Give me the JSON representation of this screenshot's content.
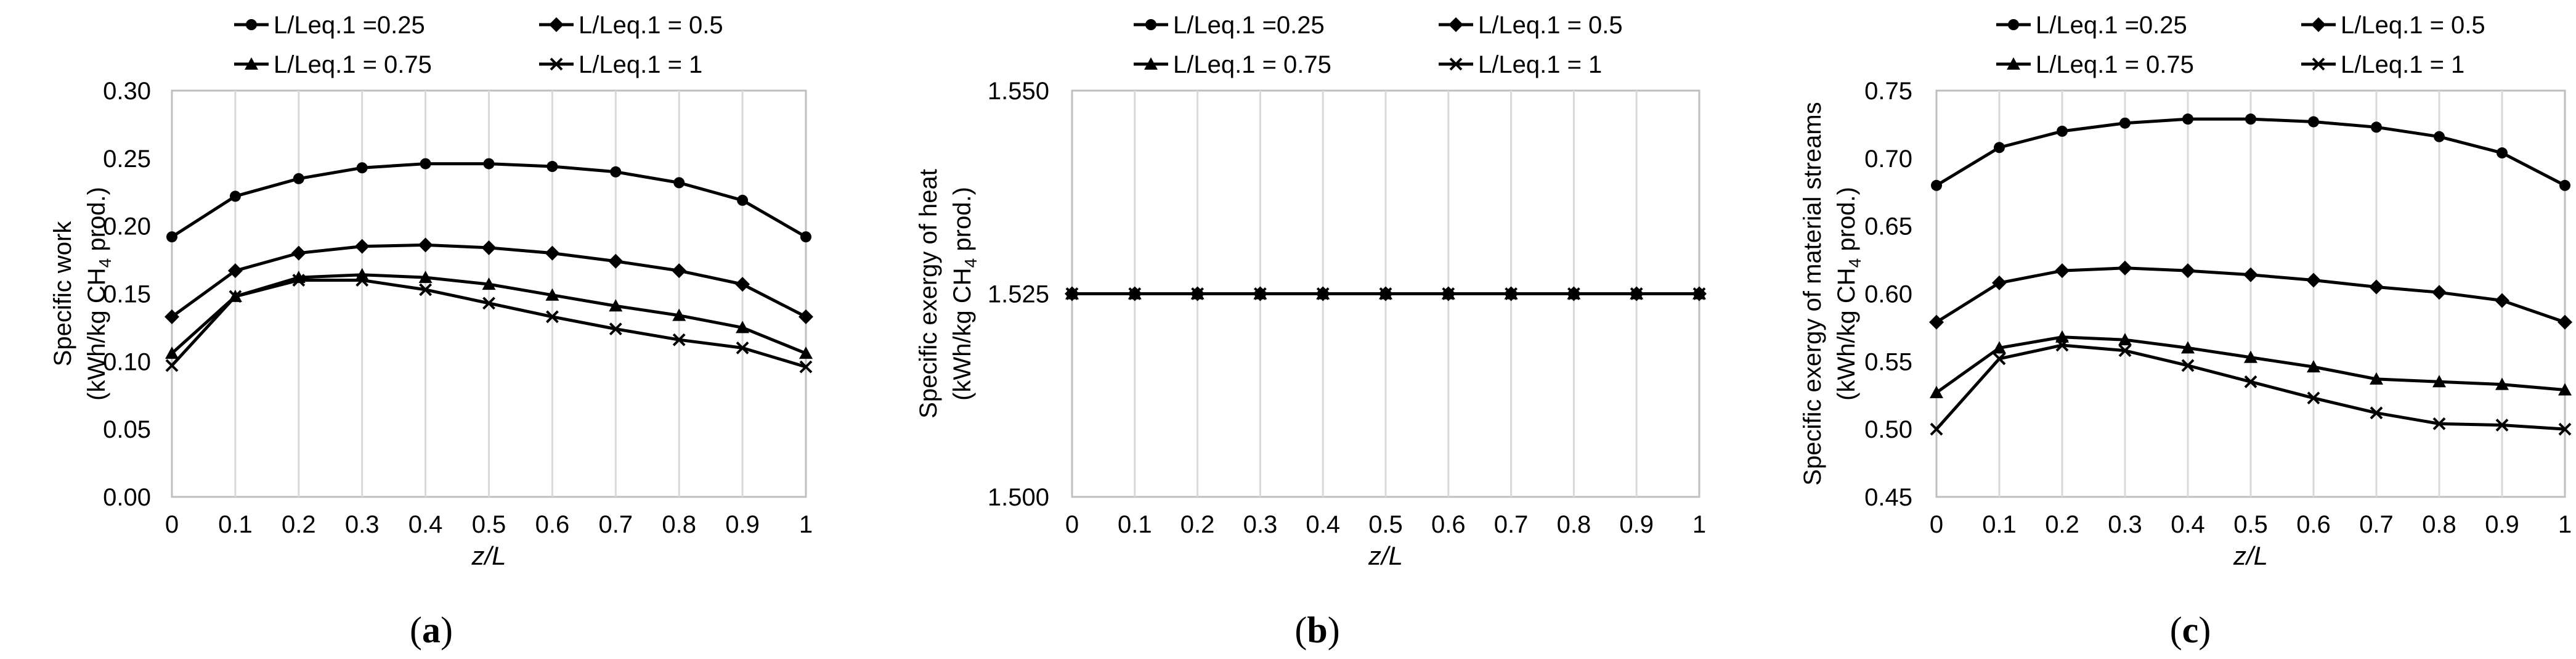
{
  "panels": [
    {
      "caption_letter": "a",
      "ylabel_line1": "Specific work",
      "ylabel_line2_pre": "(kWh/kg CH",
      "ylabel_line2_sub": "4",
      "ylabel_line2_post": " prod.)"
    },
    {
      "caption_letter": "b",
      "ylabel_line1": "Specific exergy of heat",
      "ylabel_line2_pre": "(kWh/kg CH",
      "ylabel_line2_sub": "4",
      "ylabel_line2_post": " prod.)"
    },
    {
      "caption_letter": "c",
      "ylabel_line1": "Specific exergy of material streams",
      "ylabel_line2_pre": "(kWh/kg CH",
      "ylabel_line2_sub": "4",
      "ylabel_line2_post": " prod.)"
    }
  ],
  "chart_data": [
    {
      "type": "line",
      "xlabel": "z/L",
      "ylabel": "Specific work (kWh/kg CH4 prod.)",
      "x": [
        0,
        0.1,
        0.2,
        0.3,
        0.4,
        0.5,
        0.6,
        0.7,
        0.8,
        0.9,
        1
      ],
      "x_tick_labels": [
        "0",
        "0.1",
        "0.2",
        "0.3",
        "0.4",
        "0.5",
        "0.6",
        "0.7",
        "0.8",
        "0.9",
        "1"
      ],
      "ylim": [
        0,
        0.3
      ],
      "y_ticks": [
        0,
        0.05,
        0.1,
        0.15,
        0.2,
        0.25,
        0.3
      ],
      "y_tick_labels": [
        "0.00",
        "0.05",
        "0.10",
        "0.15",
        "0.20",
        "0.25",
        "0.30"
      ],
      "grid": "vertical",
      "legend_position": "top",
      "series": [
        {
          "name": "L/Leq.1 =0.25",
          "marker": "circle",
          "values": [
            0.192,
            0.222,
            0.235,
            0.243,
            0.246,
            0.246,
            0.244,
            0.24,
            0.232,
            0.219,
            0.192
          ]
        },
        {
          "name": "L/Leq.1 = 0.5",
          "marker": "diamond",
          "values": [
            0.133,
            0.167,
            0.18,
            0.185,
            0.186,
            0.184,
            0.18,
            0.174,
            0.167,
            0.157,
            0.133
          ]
        },
        {
          "name": "L/Leq.1 = 0.75",
          "marker": "triangle",
          "values": [
            0.106,
            0.148,
            0.162,
            0.164,
            0.162,
            0.157,
            0.149,
            0.141,
            0.134,
            0.125,
            0.106
          ]
        },
        {
          "name": "L/Leq.1 = 1",
          "marker": "x",
          "values": [
            0.097,
            0.148,
            0.16,
            0.16,
            0.153,
            0.143,
            0.133,
            0.124,
            0.116,
            0.11,
            0.096
          ]
        }
      ]
    },
    {
      "type": "line",
      "xlabel": "z/L",
      "ylabel": "Specific exergy of heat (kWh/kg CH4 prod.)",
      "x": [
        0,
        0.1,
        0.2,
        0.3,
        0.4,
        0.5,
        0.6,
        0.7,
        0.8,
        0.9,
        1
      ],
      "x_tick_labels": [
        "0",
        "0.1",
        "0.2",
        "0.3",
        "0.4",
        "0.5",
        "0.6",
        "0.7",
        "0.8",
        "0.9",
        "1"
      ],
      "ylim": [
        1.5,
        1.55
      ],
      "y_ticks": [
        1.5,
        1.525,
        1.55
      ],
      "y_tick_labels": [
        "1.500",
        "1.525",
        "1.550"
      ],
      "grid": "vertical",
      "legend_position": "top",
      "series": [
        {
          "name": "L/Leq.1 =0.25",
          "marker": "circle",
          "values": [
            1.525,
            1.525,
            1.525,
            1.525,
            1.525,
            1.525,
            1.525,
            1.525,
            1.525,
            1.525,
            1.525
          ]
        },
        {
          "name": "L/Leq.1 = 0.5",
          "marker": "diamond",
          "values": [
            1.525,
            1.525,
            1.525,
            1.525,
            1.525,
            1.525,
            1.525,
            1.525,
            1.525,
            1.525,
            1.525
          ]
        },
        {
          "name": "L/Leq.1 = 0.75",
          "marker": "triangle",
          "values": [
            1.525,
            1.525,
            1.525,
            1.525,
            1.525,
            1.525,
            1.525,
            1.525,
            1.525,
            1.525,
            1.525
          ]
        },
        {
          "name": "L/Leq.1 = 1",
          "marker": "x",
          "values": [
            1.525,
            1.525,
            1.525,
            1.525,
            1.525,
            1.525,
            1.525,
            1.525,
            1.525,
            1.525,
            1.525
          ]
        }
      ]
    },
    {
      "type": "line",
      "xlabel": "z/L",
      "ylabel": "Specific exergy of material streams (kWh/kg CH4 prod.)",
      "x": [
        0,
        0.1,
        0.2,
        0.3,
        0.4,
        0.5,
        0.6,
        0.7,
        0.8,
        0.9,
        1
      ],
      "x_tick_labels": [
        "0",
        "0.1",
        "0.2",
        "0.3",
        "0.4",
        "0.5",
        "0.6",
        "0.7",
        "0.8",
        "0.9",
        "1"
      ],
      "ylim": [
        0.45,
        0.75
      ],
      "y_ticks": [
        0.45,
        0.5,
        0.55,
        0.6,
        0.65,
        0.7,
        0.75
      ],
      "y_tick_labels": [
        "0.45",
        "0.50",
        "0.55",
        "0.60",
        "0.65",
        "0.70",
        "0.75"
      ],
      "grid": "vertical",
      "legend_position": "top",
      "series": [
        {
          "name": "L/Leq.1 =0.25",
          "marker": "circle",
          "values": [
            0.68,
            0.708,
            0.72,
            0.726,
            0.729,
            0.729,
            0.727,
            0.723,
            0.716,
            0.704,
            0.68
          ]
        },
        {
          "name": "L/Leq.1 = 0.5",
          "marker": "diamond",
          "values": [
            0.579,
            0.608,
            0.617,
            0.619,
            0.617,
            0.614,
            0.61,
            0.605,
            0.601,
            0.595,
            0.579
          ]
        },
        {
          "name": "L/Leq.1 = 0.75",
          "marker": "triangle",
          "values": [
            0.527,
            0.56,
            0.568,
            0.566,
            0.56,
            0.553,
            0.546,
            0.537,
            0.535,
            0.533,
            0.529
          ]
        },
        {
          "name": "L/Leq.1 = 1",
          "marker": "x",
          "values": [
            0.5,
            0.552,
            0.562,
            0.558,
            0.547,
            0.535,
            0.523,
            0.512,
            0.504,
            0.503,
            0.5
          ]
        }
      ]
    }
  ]
}
